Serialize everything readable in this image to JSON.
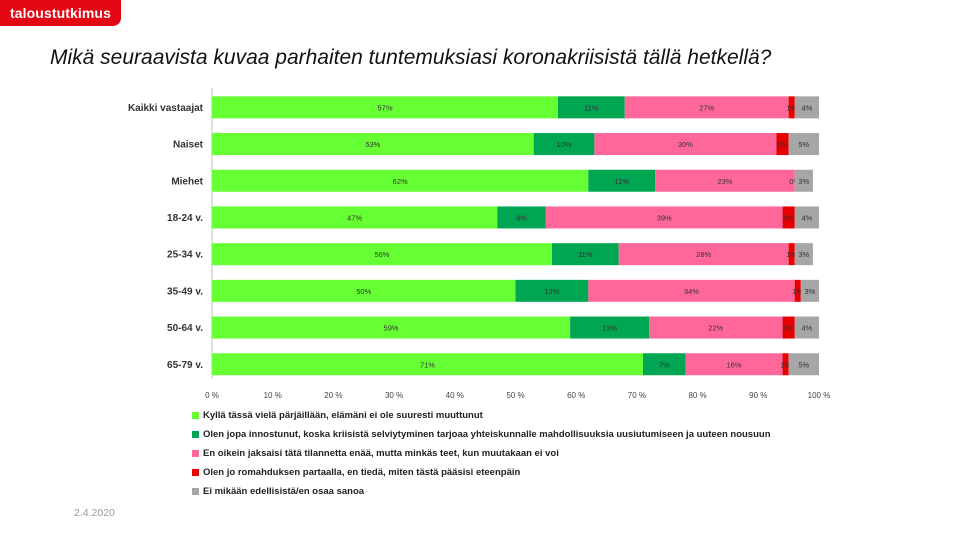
{
  "brand": {
    "logo_text": "taloustutkimus"
  },
  "footer": {
    "date": "2.4.2020"
  },
  "colors": {
    "brand": "#e30613",
    "series": [
      "#66ff33",
      "#00a651",
      "#ff6699",
      "#e60000",
      "#a6a6a6"
    ]
  },
  "chart_data": {
    "type": "bar",
    "orientation": "horizontal",
    "stacked": true,
    "title": "Mikä seuraavista kuvaa parhaiten tuntemuksiasi koronakriisistä tällä hetkellä?",
    "categories": [
      "Kaikki vastaajat",
      "Naiset",
      "Miehet",
      "18-24 v.",
      "25-34 v.",
      "35-49 v.",
      "50-64 v.",
      "65-79 v."
    ],
    "xlim": [
      0,
      100
    ],
    "x_ticks": [
      "0 %",
      "10 %",
      "20 %",
      "30 %",
      "40 %",
      "50 %",
      "60 %",
      "70 %",
      "80 %",
      "90 %",
      "100 %"
    ],
    "grid": false,
    "legend_position": "bottom-left",
    "series": [
      {
        "name": "Kyllä tässä vielä pärjäillään, elämäni ei ole suuresti muuttunut",
        "values": [
          57,
          53,
          62,
          47,
          56,
          50,
          59,
          71
        ],
        "labels": [
          "57%",
          "53%",
          "62%",
          "47%",
          "56%",
          "50%",
          "59%",
          "71%"
        ]
      },
      {
        "name": "Olen jopa innostunut, koska kriisistä selviytyminen tarjoaa yhteiskunnalle mahdollisuuksia uusiutumiseen ja uuteen nousuun",
        "values": [
          11,
          10,
          11,
          8,
          11,
          12,
          13,
          7
        ],
        "labels": [
          "11%",
          "10%",
          "11%",
          "8%",
          "11%",
          "12%",
          "13%",
          "7%"
        ]
      },
      {
        "name": "En oikein jaksaisi tätä tilannetta enää, mutta minkäs teet, kun muutakaan ei voi",
        "values": [
          27,
          30,
          23,
          39,
          28,
          34,
          22,
          16
        ],
        "labels": [
          "27%",
          "30%",
          "23%",
          "39%",
          "28%",
          "34%",
          "22%",
          "16%"
        ]
      },
      {
        "name": "Olen jo romahduksen partaalla, en tiedä, miten tästä pääsisi eteenpäin",
        "values": [
          1,
          2,
          0,
          2,
          1,
          1,
          2,
          1
        ],
        "labels": [
          "1%",
          "2%",
          "0%",
          "2%",
          "1%",
          "1%",
          "2%",
          "1%"
        ]
      },
      {
        "name": "Ei mikään edellisistä/en osaa sanoa",
        "values": [
          4,
          5,
          3,
          4,
          3,
          3,
          4,
          5
        ],
        "labels": [
          "4%",
          "5%",
          "3%",
          "4%",
          "3%",
          "3%",
          "4%",
          "5%"
        ]
      }
    ]
  }
}
